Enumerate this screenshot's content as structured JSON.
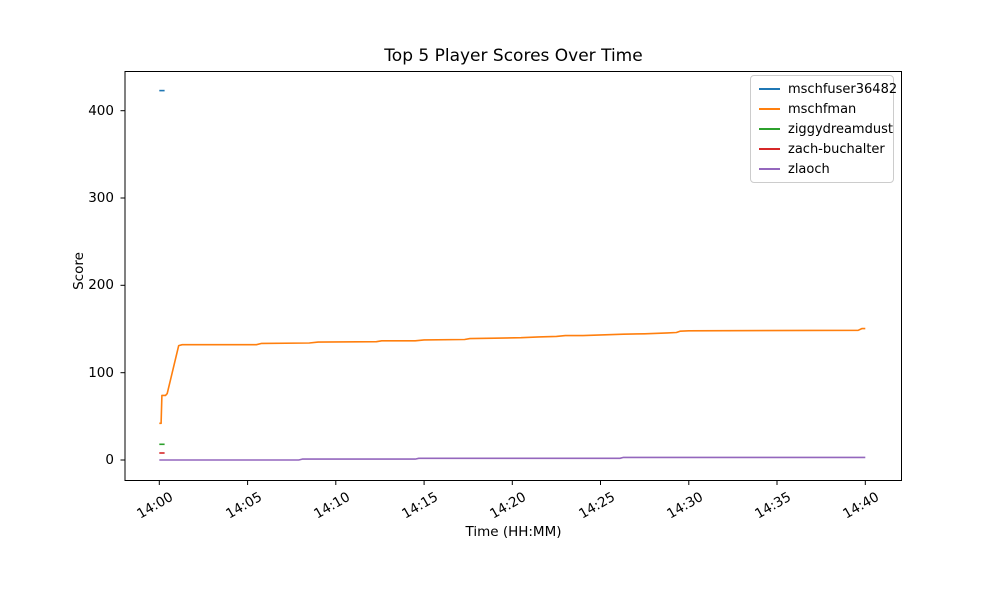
{
  "chart_data": {
    "type": "line",
    "title": "Top 5 Player Scores Over Time",
    "xlabel": "Time (HH:MM)",
    "ylabel": "Score",
    "grid": false,
    "legend_position": "upper right",
    "x_ticks_minutes": [
      0,
      5,
      10,
      15,
      20,
      25,
      30,
      35,
      40
    ],
    "x_tick_labels": [
      "14:00",
      "14:05",
      "14:10",
      "14:15",
      "14:20",
      "14:25",
      "14:30",
      "14:35",
      "14:40"
    ],
    "y_ticks": [
      0,
      100,
      200,
      300,
      400
    ],
    "y_tick_labels": [
      "0",
      "100",
      "200",
      "300",
      "400"
    ],
    "xlim_minutes": [
      -1.95,
      42.05
    ],
    "ylim": [
      -23,
      445
    ],
    "series": [
      {
        "name": "mschfuser36482",
        "color": "#1f77b4",
        "points": [
          [
            0,
            423
          ],
          [
            0.3,
            423
          ]
        ]
      },
      {
        "name": "mschfman",
        "color": "#ff7f0e",
        "points": [
          [
            0,
            42
          ],
          [
            0.1,
            42
          ],
          [
            0.15,
            74
          ],
          [
            0.35,
            74
          ],
          [
            0.45,
            76
          ],
          [
            1.1,
            131
          ],
          [
            1.3,
            132
          ],
          [
            5.5,
            132
          ],
          [
            5.8,
            133.5
          ],
          [
            8.5,
            134
          ],
          [
            9,
            135
          ],
          [
            12.3,
            135.5
          ],
          [
            12.6,
            136.5
          ],
          [
            14.5,
            136.5
          ],
          [
            15,
            137.5
          ],
          [
            17.3,
            138
          ],
          [
            17.6,
            139
          ],
          [
            19,
            139.5
          ],
          [
            20.5,
            140
          ],
          [
            21.5,
            141
          ],
          [
            22.5,
            141.5
          ],
          [
            23,
            142.5
          ],
          [
            24,
            142.5
          ],
          [
            26.3,
            144
          ],
          [
            27.5,
            144.5
          ],
          [
            28.8,
            145.5
          ],
          [
            29.3,
            146
          ],
          [
            29.5,
            147.5
          ],
          [
            30,
            148
          ],
          [
            39.6,
            148.5
          ],
          [
            39.8,
            150.5
          ],
          [
            40,
            150.5
          ]
        ]
      },
      {
        "name": "ziggydreamdust",
        "color": "#2ca02c",
        "points": [
          [
            0,
            18
          ],
          [
            0.3,
            18
          ]
        ]
      },
      {
        "name": "zach-buchalter",
        "color": "#d62728",
        "points": [
          [
            0,
            8
          ],
          [
            0.3,
            8
          ]
        ]
      },
      {
        "name": "zlaoch",
        "color": "#9467bd",
        "points": [
          [
            0,
            0
          ],
          [
            7.9,
            0
          ],
          [
            8.1,
            1
          ],
          [
            14.5,
            1
          ],
          [
            14.7,
            2
          ],
          [
            26.1,
            2
          ],
          [
            26.3,
            3
          ],
          [
            40,
            3
          ]
        ]
      }
    ]
  }
}
